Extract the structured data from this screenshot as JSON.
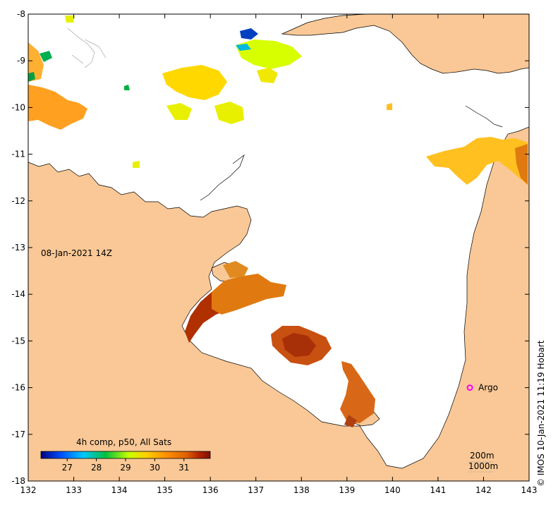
{
  "map": {
    "date_label": "08-Jan-2021 14Z",
    "colorbar_title": "4h comp, p50, All Sats",
    "colorbar_ticks": [
      "27",
      "28",
      "29",
      "30",
      "31"
    ],
    "colorbar_range": [
      26.1,
      31.9
    ],
    "x_ticks": [
      "132",
      "133",
      "134",
      "135",
      "136",
      "137",
      "138",
      "139",
      "140",
      "141",
      "142",
      "143"
    ],
    "y_ticks": [
      "-8",
      "-9",
      "-10",
      "-11",
      "-12",
      "-13",
      "-14",
      "-15",
      "-16",
      "-17",
      "-18"
    ],
    "lon_range": [
      132,
      143
    ],
    "lat_range": [
      -8,
      -18
    ],
    "marker_label": "Argo",
    "marker_lon": 141.7,
    "marker_lat": -16.0,
    "depth_labels": [
      "200m",
      "1000m"
    ],
    "credit": "© IMOS 10-Jan-2021 11:19 Hobart"
  },
  "colors": {
    "land": "#f9c896",
    "ocean": "#ffffff",
    "argo": "#ff00ff",
    "sst_scale": [
      "#000080",
      "#0050ff",
      "#00c8ff",
      "#00c040",
      "#c8ff00",
      "#ffd000",
      "#ff9000",
      "#e06000",
      "#b02000",
      "#801000"
    ]
  }
}
